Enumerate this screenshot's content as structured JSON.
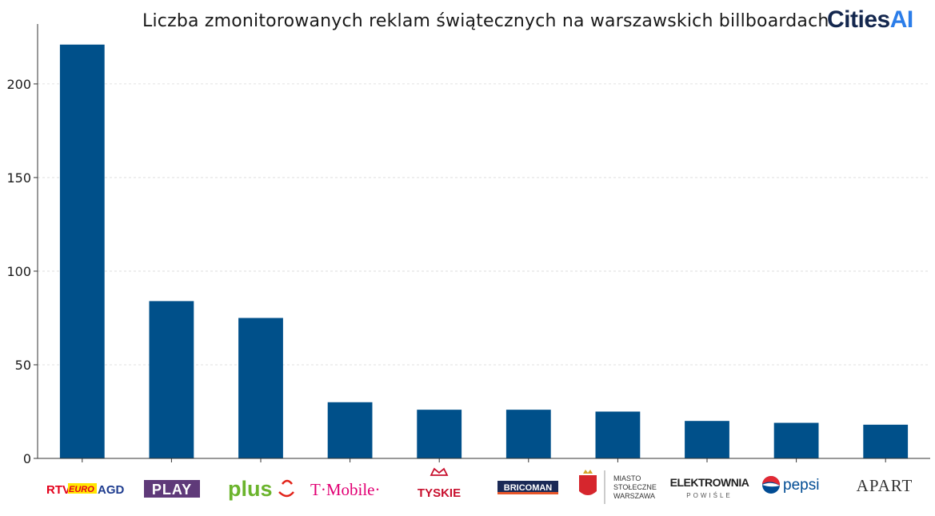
{
  "header": {
    "title": "Liczba zmonitorowanych reklam świątecznych na warszawskich billboardach",
    "brand_prefix": "Cities",
    "brand_suffix": "AI"
  },
  "chart_data": {
    "type": "bar",
    "title": "Liczba zmonitorowanych reklam świątecznych na warszawskich billboardach",
    "xlabel": "",
    "ylabel": "",
    "categories": [
      "RTV EURO AGD",
      "PLAY",
      "plus",
      "T Mobile",
      "TYSKIE",
      "BRICOMAN",
      "MIASTO STOŁECZNE WARSZAWA",
      "ELEKTROWNIA POWIŚLE",
      "pepsi",
      "APART"
    ],
    "values": [
      221,
      84,
      75,
      30,
      26,
      26,
      25,
      20,
      19,
      18
    ],
    "ylim": [
      0,
      232
    ],
    "yticks": [
      0,
      50,
      100,
      150,
      200
    ],
    "bar_color": "#00508a",
    "grid": "horizontal dashed",
    "legend": "none"
  },
  "colors": {
    "rtv_red": "#e3001b",
    "rtv_yellow": "#ffe600",
    "rtv_blue": "#1e3c8f",
    "play": "#5f3a79",
    "plus_green": "#6bb42d",
    "plus_red": "#e2231a",
    "tmobile": "#e20074",
    "tyskie": "#c8102e",
    "bricoman_bg": "#1b2a57",
    "bricoman_stripe": "#e8562a",
    "warszawa_red": "#d6262d",
    "warszawa_gold": "#d4a52a",
    "pepsi_blue": "#004b93",
    "pepsi_red": "#e32934",
    "dark": "#222222"
  }
}
